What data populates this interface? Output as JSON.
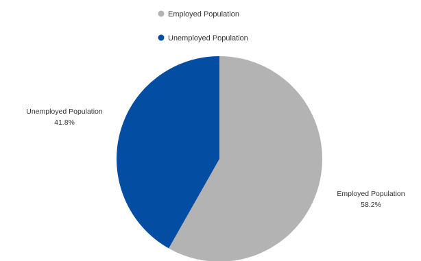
{
  "chart_data": {
    "type": "pie",
    "title": "",
    "legend_position": "top",
    "slices": [
      {
        "label": "Employed Population",
        "value": 58.2,
        "value_label": "58.2%",
        "color": "#b3b3b3"
      },
      {
        "label": "Unemployed Population",
        "value": 41.8,
        "value_label": "41.8%",
        "color": "#034ea2"
      }
    ]
  }
}
